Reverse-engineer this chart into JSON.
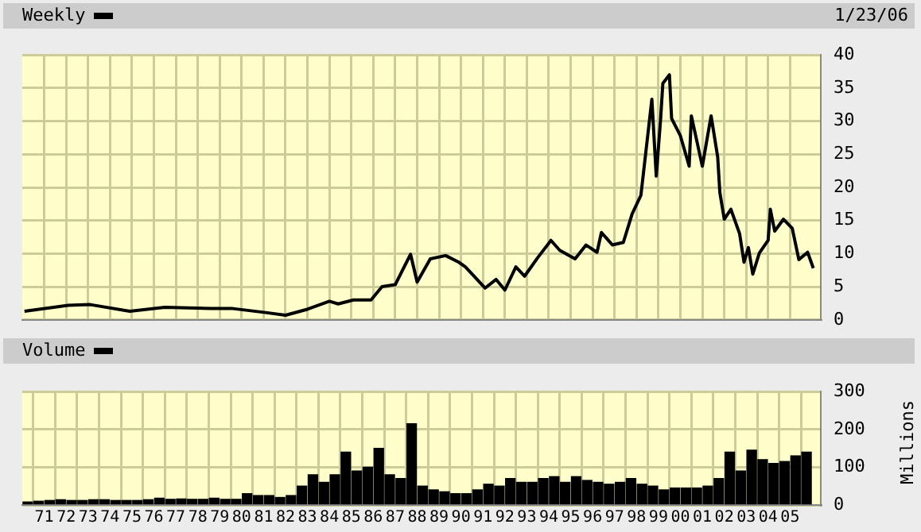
{
  "chart_data": [
    {
      "type": "line",
      "title": "Weekly",
      "annotations": [
        "1/23/06"
      ],
      "tick_labels": "y",
      "grid": true,
      "legend": false,
      "marker": "none",
      "line_style": "solid",
      "xlim": [
        1970,
        2006.4
      ],
      "ylim": [
        0,
        40
      ],
      "yticks": [
        0,
        5,
        10,
        15,
        20,
        25,
        30,
        35,
        40
      ],
      "xticks": [
        {
          "value": 1971,
          "label": null
        },
        {
          "value": 1972,
          "label": null
        },
        {
          "value": 1973,
          "label": null
        },
        {
          "value": 1974,
          "label": null
        },
        {
          "value": 1975,
          "label": null
        },
        {
          "value": 1976,
          "label": null
        },
        {
          "value": 1977,
          "label": null
        },
        {
          "value": 1978,
          "label": null
        },
        {
          "value": 1979,
          "label": null
        },
        {
          "value": 1980,
          "label": null
        },
        {
          "value": 1981,
          "label": null
        },
        {
          "value": 1982,
          "label": null
        },
        {
          "value": 1983,
          "label": null
        },
        {
          "value": 1984,
          "label": null
        },
        {
          "value": 1985,
          "label": null
        },
        {
          "value": 1986,
          "label": null
        },
        {
          "value": 1987,
          "label": null
        },
        {
          "value": 1988,
          "label": null
        },
        {
          "value": 1989,
          "label": null
        },
        {
          "value": 1990,
          "label": null
        },
        {
          "value": 1991,
          "label": null
        },
        {
          "value": 1992,
          "label": null
        },
        {
          "value": 1993,
          "label": null
        },
        {
          "value": 1994,
          "label": null
        },
        {
          "value": 1995,
          "label": null
        },
        {
          "value": 1996,
          "label": null
        },
        {
          "value": 1997,
          "label": null
        },
        {
          "value": 1998,
          "label": null
        },
        {
          "value": 1999,
          "label": null
        },
        {
          "value": 2000,
          "label": null
        },
        {
          "value": 2001,
          "label": null
        },
        {
          "value": 2002,
          "label": null
        },
        {
          "value": 2003,
          "label": null
        },
        {
          "value": 2004,
          "label": null
        },
        {
          "value": 2005,
          "label": null
        }
      ],
      "series": [
        {
          "color": "#000000",
          "x": [
            1970.1,
            1972.1,
            1973.1,
            1974.9,
            1976.5,
            1978.6,
            1979.6,
            1981.1,
            1982.0,
            1983.0,
            1984.0,
            1984.4,
            1985.1,
            1985.9,
            1986.4,
            1987.0,
            1987.7,
            1988.0,
            1988.6,
            1989.3,
            1989.9,
            1990.2,
            1991.1,
            1991.6,
            1992.0,
            1992.5,
            1992.9,
            1993.5,
            1994.1,
            1994.5,
            1995.2,
            1995.7,
            1996.2,
            1996.4,
            1996.9,
            1997.4,
            1997.8,
            1998.2,
            1998.6,
            1998.7,
            1998.9,
            1999.1,
            1999.2,
            1999.5,
            1999.6,
            2000.0,
            2000.4,
            2000.5,
            2001.0,
            2001.4,
            2001.7,
            2001.8,
            2002.0,
            2002.3,
            2002.7,
            2002.9,
            2003.1,
            2003.3,
            2003.6,
            2004.0,
            2004.1,
            2004.3,
            2004.7,
            2005.1,
            2005.4,
            2005.8,
            2006.06
          ],
          "values": [
            1.3,
            2.2,
            2.3,
            1.3,
            1.9,
            1.7,
            1.7,
            1.1,
            0.7,
            1.6,
            2.8,
            2.4,
            3.0,
            3.0,
            5.0,
            5.3,
            9.9,
            5.7,
            9.2,
            9.7,
            8.7,
            8.0,
            4.8,
            6.1,
            4.5,
            8.0,
            6.6,
            9.4,
            12.0,
            10.5,
            9.2,
            11.3,
            10.2,
            13.2,
            11.3,
            11.7,
            16.0,
            18.8,
            30.4,
            33.3,
            21.7,
            30.4,
            35.7,
            37.0,
            30.4,
            27.8,
            23.2,
            30.8,
            23.2,
            30.8,
            24.6,
            19.2,
            15.2,
            16.7,
            13.0,
            8.7,
            10.9,
            6.9,
            10.1,
            12.0,
            16.7,
            13.4,
            15.2,
            13.8,
            9.1,
            10.2,
            7.8
          ]
        }
      ]
    },
    {
      "type": "bar",
      "title": "Volume",
      "ylabel": "Millions",
      "grid": true,
      "legend": false,
      "xlim": [
        1970,
        2006.4
      ],
      "ylim": [
        0,
        300
      ],
      "yticks": [
        0,
        100,
        200,
        300
      ],
      "xticks": [
        {
          "value": 1971,
          "label": "71"
        },
        {
          "value": 1972,
          "label": "72"
        },
        {
          "value": 1973,
          "label": "73"
        },
        {
          "value": 1974,
          "label": "74"
        },
        {
          "value": 1975,
          "label": "75"
        },
        {
          "value": 1976,
          "label": "76"
        },
        {
          "value": 1977,
          "label": "77"
        },
        {
          "value": 1978,
          "label": "78"
        },
        {
          "value": 1979,
          "label": "79"
        },
        {
          "value": 1980,
          "label": "80"
        },
        {
          "value": 1981,
          "label": "81"
        },
        {
          "value": 1982,
          "label": "82"
        },
        {
          "value": 1983,
          "label": "83"
        },
        {
          "value": 1984,
          "label": "84"
        },
        {
          "value": 1985,
          "label": "85"
        },
        {
          "value": 1986,
          "label": "86"
        },
        {
          "value": 1987,
          "label": "87"
        },
        {
          "value": 1988,
          "label": "88"
        },
        {
          "value": 1989,
          "label": "89"
        },
        {
          "value": 1990,
          "label": "90"
        },
        {
          "value": 1991,
          "label": "91"
        },
        {
          "value": 1992,
          "label": "92"
        },
        {
          "value": 1993,
          "label": "93"
        },
        {
          "value": 1994,
          "label": "94"
        },
        {
          "value": 1995,
          "label": "95"
        },
        {
          "value": 1996,
          "label": "96"
        },
        {
          "value": 1997,
          "label": "97"
        },
        {
          "value": 1998,
          "label": "98"
        },
        {
          "value": 1999,
          "label": "99"
        },
        {
          "value": 2000,
          "label": "00"
        },
        {
          "value": 2001,
          "label": "01"
        },
        {
          "value": 2002,
          "label": "02"
        },
        {
          "value": 2003,
          "label": "03"
        },
        {
          "value": 2004,
          "label": "04"
        },
        {
          "value": 2005,
          "label": "05"
        }
      ],
      "series": [
        {
          "color": "#000000",
          "x": [
            1970.25,
            1970.75,
            1971.25,
            1971.75,
            1972.25,
            1972.75,
            1973.25,
            1973.75,
            1974.25,
            1974.75,
            1975.25,
            1975.75,
            1976.25,
            1976.75,
            1977.25,
            1977.75,
            1978.25,
            1978.75,
            1979.25,
            1979.75,
            1980.25,
            1980.75,
            1981.25,
            1981.75,
            1982.25,
            1982.75,
            1983.25,
            1983.75,
            1984.25,
            1984.75,
            1985.25,
            1985.75,
            1986.25,
            1986.75,
            1987.25,
            1987.75,
            1988.25,
            1988.75,
            1989.25,
            1989.75,
            1990.25,
            1990.75,
            1991.25,
            1991.75,
            1992.25,
            1992.75,
            1993.25,
            1993.75,
            1994.25,
            1994.75,
            1995.25,
            1995.75,
            1996.25,
            1996.75,
            1997.25,
            1997.75,
            1998.25,
            1998.75,
            1999.25,
            1999.75,
            2000.25,
            2000.75,
            2001.25,
            2001.75,
            2002.25,
            2002.75,
            2003.25,
            2003.75,
            2004.25,
            2004.75,
            2005.25,
            2005.75
          ],
          "values": [
            8,
            10,
            12,
            14,
            12,
            12,
            14,
            14,
            12,
            12,
            12,
            14,
            18,
            15,
            16,
            15,
            15,
            18,
            15,
            15,
            30,
            25,
            25,
            20,
            25,
            50,
            80,
            60,
            80,
            140,
            90,
            100,
            150,
            80,
            70,
            215,
            50,
            40,
            35,
            30,
            30,
            40,
            55,
            50,
            70,
            60,
            60,
            70,
            75,
            60,
            75,
            65,
            60,
            55,
            60,
            70,
            55,
            50,
            40,
            45,
            45,
            45,
            50,
            70,
            140,
            90,
            145,
            120,
            110,
            115,
            130,
            140
          ]
        }
      ]
    }
  ]
}
